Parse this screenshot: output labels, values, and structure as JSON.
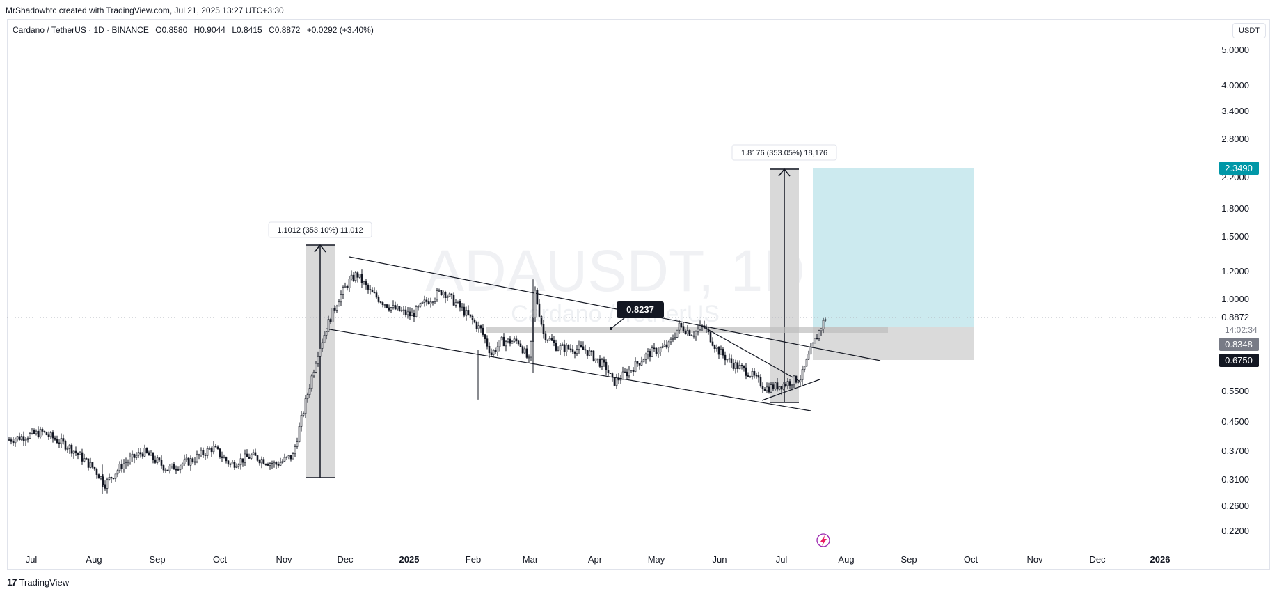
{
  "header": {
    "attribution": "MrShadowbtc created with TradingView.com, Jul 21, 2025 13:27 UTC+3:30",
    "legend_pair": "Cardano / TetherUS · 1D · BINANCE",
    "open": "O0.8580",
    "high": "H0.9044",
    "low": "L0.8415",
    "close": "C0.8872",
    "change": "+0.0292 (+3.40%)"
  },
  "currency_button": "USDT",
  "watermark": {
    "symbol": "ADAUSDT, 1D",
    "name": "Cardano / TetherUS"
  },
  "footer": {
    "brand": "TradingView",
    "logo_icon": "tradingview-logo-icon"
  },
  "chart_data": {
    "type": "candlestick",
    "scale": "log",
    "y_ticks": [
      "5.0000",
      "4.0000",
      "3.4000",
      "2.8000",
      "2.2000",
      "1.8000",
      "1.5000",
      "1.2000",
      "1.0000",
      "0.8872",
      "0.5500",
      "0.4500",
      "0.3700",
      "0.3100",
      "0.2600",
      "0.2200"
    ],
    "x_ticks": [
      "Jul",
      "Aug",
      "Sep",
      "Oct",
      "Nov",
      "Dec",
      "2025",
      "Feb",
      "Mar",
      "Apr",
      "May",
      "Jun",
      "Jul",
      "Aug",
      "Sep",
      "Oct",
      "Nov",
      "Dec",
      "2026"
    ],
    "price_labels": {
      "target": "2.3490",
      "current_time": "14:02:34",
      "level_a": "0.8348",
      "stop": "0.6750"
    },
    "annotations": {
      "measure1": "1.1012 (353.10%) 11,012",
      "measure2": "1.8176 (353.05%) 18,176",
      "callout": "0.8237"
    },
    "colors": {
      "target_zone": "#c6e8ed",
      "stop_zone": "#d6d6d6",
      "target_badge": "#0097a7",
      "level_badge": "#787b86",
      "stop_badge": "#131722",
      "lightning": "#9c27b0"
    },
    "closes_approx": {
      "2024-07": 0.4,
      "2024-08": 0.33,
      "2024-09": 0.36,
      "2024-10": 0.35,
      "2024-11-10": 0.48,
      "2024-12-03": 1.13,
      "2025-01": 0.98,
      "2025-02": 0.78,
      "2025-03-02": 1.05,
      "2025-04": 0.62,
      "2025-05-12": 0.82,
      "2025-06-22": 0.55,
      "2025-07-20": 0.8872
    }
  }
}
